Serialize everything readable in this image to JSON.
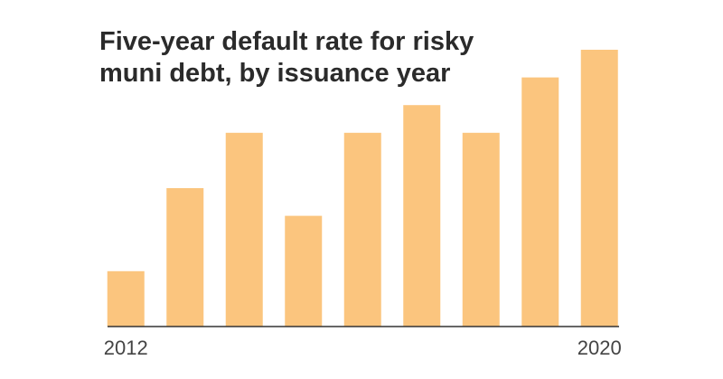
{
  "chart_data": {
    "type": "bar",
    "title": [
      "Five-year default rate for risky",
      "muni debt, by issuance year"
    ],
    "categories": [
      "2012",
      null,
      null,
      null,
      null,
      null,
      null,
      null,
      "2020"
    ],
    "values": [
      2,
      5,
      7,
      4,
      7,
      8,
      7,
      9,
      10
    ],
    "color": "#fbc57e",
    "ylim": [
      0,
      10
    ]
  }
}
